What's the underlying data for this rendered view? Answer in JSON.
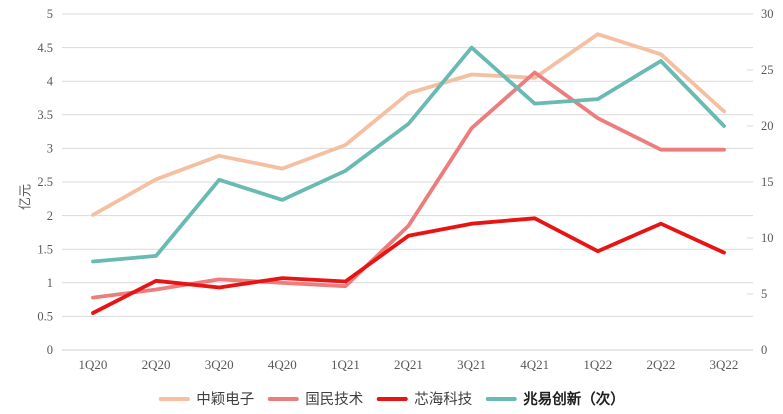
{
  "chart_data": {
    "type": "line",
    "title": "",
    "categories": [
      "1Q20",
      "2Q20",
      "3Q20",
      "4Q20",
      "1Q21",
      "2Q21",
      "3Q21",
      "4Q21",
      "1Q22",
      "2Q22",
      "3Q22"
    ],
    "series": [
      {
        "name": "中颖电子",
        "axis": "left",
        "color": "#f5bfa2",
        "stroke_width": 3.8,
        "values": [
          2.01,
          2.54,
          2.89,
          2.7,
          3.05,
          3.82,
          4.1,
          4.05,
          4.7,
          4.4,
          3.55
        ],
        "bold_legend": false
      },
      {
        "name": "国民技术",
        "axis": "left",
        "color": "#ed7d7d",
        "stroke_width": 3.8,
        "values": [
          0.78,
          0.9,
          1.05,
          1.0,
          0.95,
          1.85,
          3.3,
          4.13,
          3.45,
          2.98,
          2.98
        ],
        "bold_legend": false
      },
      {
        "name": "芯海科技",
        "axis": "left",
        "color": "#e81414",
        "stroke_width": 3.8,
        "values": [
          0.55,
          1.03,
          0.93,
          1.07,
          1.02,
          1.7,
          1.88,
          1.96,
          1.47,
          1.88,
          1.45
        ],
        "bold_legend": false
      },
      {
        "name": "兆易创新（次）",
        "axis": "right",
        "color": "#68bab2",
        "stroke_width": 3.8,
        "values": [
          7.9,
          8.4,
          15.2,
          13.4,
          16.0,
          20.2,
          27.0,
          22.0,
          22.4,
          25.8,
          20.0
        ],
        "bold_legend": true
      }
    ],
    "left_axis": {
      "title": "亿元",
      "min": 0,
      "max": 5,
      "step": 0.5,
      "tick_labels": [
        "0",
        "0.5",
        "1",
        "1.5",
        "2",
        "2.5",
        "3",
        "3.5",
        "4",
        "4.5",
        "5"
      ]
    },
    "right_axis": {
      "title": "",
      "min": 0,
      "max": 30,
      "step": 5,
      "tick_labels": [
        "0",
        "5",
        "10",
        "15",
        "20",
        "25",
        "30"
      ]
    },
    "grid": "horizontal",
    "legend_position": "bottom",
    "colors": {
      "gridline": "#dadada",
      "axis_line": "#d2cece",
      "tick_text": "#595959",
      "legend_text": "#3f3f3f"
    }
  }
}
